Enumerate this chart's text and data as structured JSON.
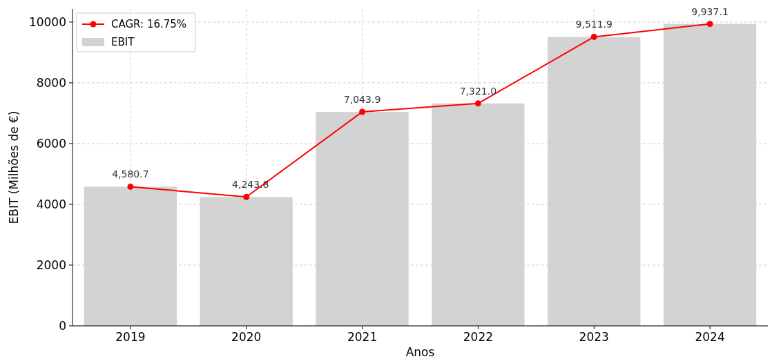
{
  "chart_data": {
    "type": "bar",
    "xlabel": "Anos",
    "ylabel": "EBIT (Milhões de €)",
    "categories": [
      "2019",
      "2020",
      "2021",
      "2022",
      "2023",
      "2024"
    ],
    "series": [
      {
        "name": "EBIT",
        "color": "#d3d3d3",
        "values": [
          4580,
          4240,
          7040,
          7320,
          9510,
          9940
        ]
      },
      {
        "name": "CAGR: 16.75%",
        "type": "line",
        "color": "#ff0000",
        "values": [
          4580.7,
          4243.8,
          7043.9,
          7321.0,
          9511.9,
          9937.1
        ],
        "value_labels": [
          "4,580.7",
          "4,243.8",
          "7,043.9",
          "7,321.0",
          "9,511.9",
          "9,937.1"
        ]
      }
    ],
    "ylim": [
      0,
      10430
    ],
    "yticks": [
      0,
      2000,
      4000,
      6000,
      8000,
      10000
    ],
    "grid": true,
    "legend": "top left",
    "marker": "circle",
    "line_style": "solid"
  }
}
